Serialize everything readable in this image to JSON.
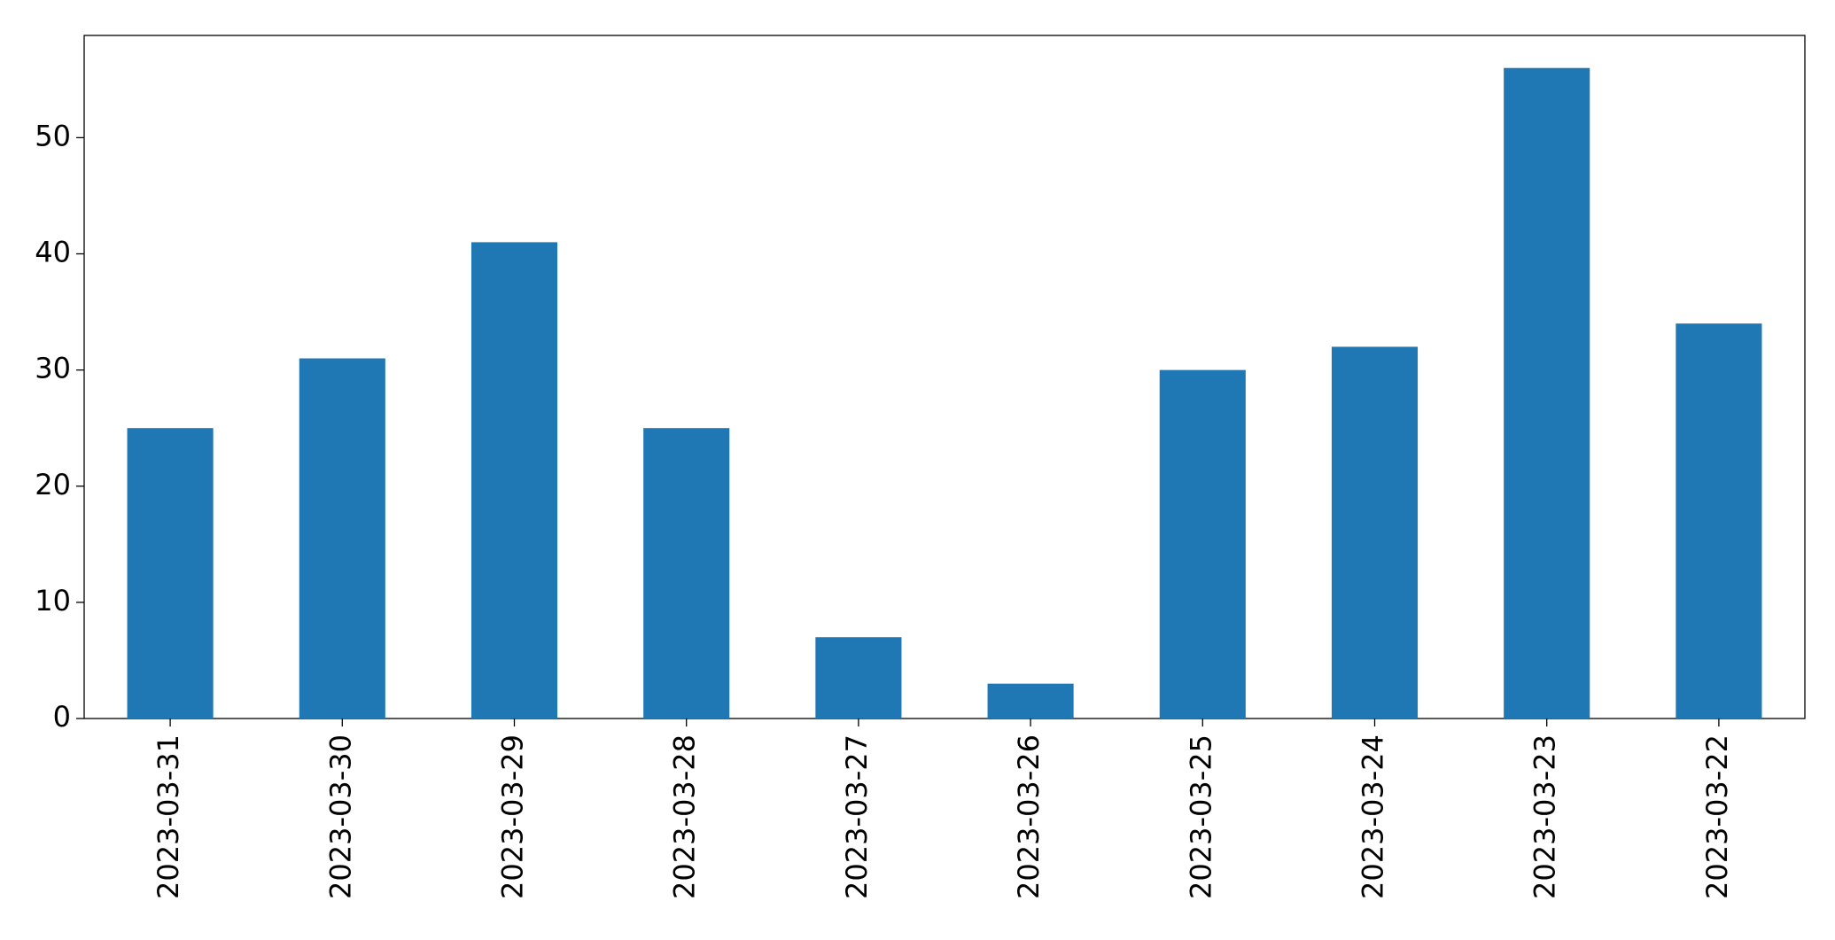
{
  "chart_data": {
    "type": "bar",
    "categories": [
      "2023-03-31",
      "2023-03-30",
      "2023-03-29",
      "2023-03-28",
      "2023-03-27",
      "2023-03-26",
      "2023-03-25",
      "2023-03-24",
      "2023-03-23",
      "2023-03-22"
    ],
    "values": [
      25,
      31,
      41,
      25,
      7,
      3,
      30,
      32,
      56,
      34
    ],
    "color": "#1f77b4",
    "ylim": [
      0,
      58.8
    ],
    "yticks": [
      0,
      10,
      20,
      30,
      40,
      50
    ],
    "grid": false
  }
}
